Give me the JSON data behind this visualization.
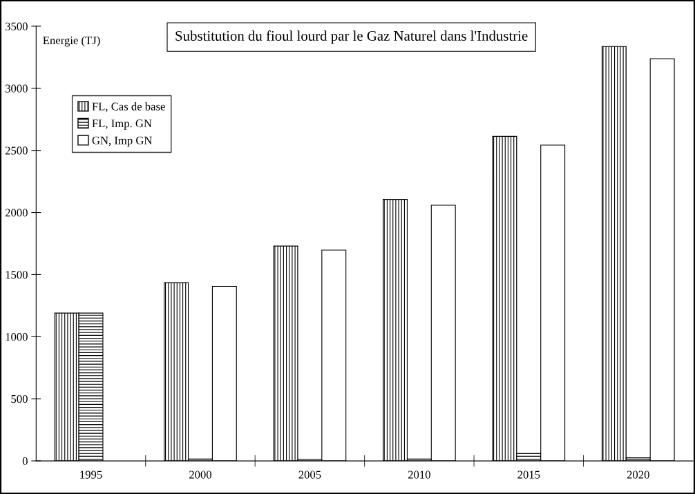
{
  "chart_data": {
    "type": "bar",
    "title": "Substitution du fioul lourd par le Gaz Naturel dans l'Industrie",
    "ylabel": "Energie (TJ)",
    "categories": [
      "1995",
      "2000",
      "2005",
      "2010",
      "2015",
      "2020"
    ],
    "series": [
      {
        "name": "FL, Cas de base",
        "color": "#000000",
        "values": [
          1190,
          1435,
          1730,
          2105,
          2613,
          3337
        ]
      },
      {
        "name": "FL, Imp. GN",
        "color": "#000000",
        "values": [
          1190,
          15,
          12,
          15,
          60,
          25
        ]
      },
      {
        "name": "GN, Imp GN",
        "color": "#ffffff",
        "values": [
          null,
          1405,
          1697,
          2059,
          2543,
          3238
        ]
      }
    ],
    "ylim": [
      0,
      3500
    ],
    "yticks": [
      0,
      500,
      1000,
      1500,
      2000,
      2500,
      3000,
      3500
    ],
    "grid": false,
    "legend": "top left"
  }
}
